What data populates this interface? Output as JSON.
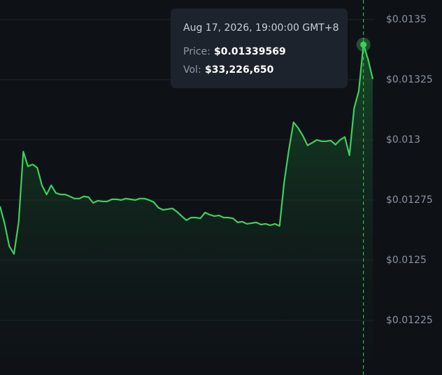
{
  "chart_data": {
    "type": "line",
    "color": "#3ecf5c",
    "values": [
      0.012724,
      0.012651,
      0.012558,
      0.012526,
      0.012657,
      0.012951,
      0.01289,
      0.012898,
      0.012884,
      0.012811,
      0.012773,
      0.012811,
      0.012779,
      0.012773,
      0.012773,
      0.012765,
      0.012756,
      0.012756,
      0.012765,
      0.012762,
      0.012738,
      0.012747,
      0.012744,
      0.012744,
      0.012753,
      0.012753,
      0.01275,
      0.012756,
      0.012753,
      0.01275,
      0.012756,
      0.012756,
      0.01275,
      0.012741,
      0.012718,
      0.012709,
      0.012712,
      0.012715,
      0.012701,
      0.012683,
      0.012666,
      0.012677,
      0.012677,
      0.012674,
      0.012698,
      0.012689,
      0.012683,
      0.012686,
      0.012677,
      0.012677,
      0.012674,
      0.012657,
      0.01266,
      0.012651,
      0.012654,
      0.012657,
      0.012648,
      0.012651,
      0.012645,
      0.012651,
      0.012642,
      0.012826,
      0.012959,
      0.013073,
      0.013049,
      0.013017,
      0.012977,
      0.012988,
      0.013,
      0.012994,
      0.012994,
      0.012997,
      0.01298,
      0.013,
      0.013012,
      0.012936,
      0.013131,
      0.013203,
      0.01339569,
      0.013334,
      0.013253
    ],
    "ylim": [
      0.012023,
      0.013581
    ],
    "yticks": [
      {
        "value": 0.0135,
        "label": "$0.0135"
      },
      {
        "value": 0.01325,
        "label": "$0.01325"
      },
      {
        "value": 0.013,
        "label": "$0.013"
      },
      {
        "value": 0.01275,
        "label": "$0.01275"
      },
      {
        "value": 0.0125,
        "label": "$0.0125"
      },
      {
        "value": 0.01225,
        "label": "$0.01225"
      }
    ],
    "grid": true,
    "tooltip": {
      "date": "Aug 17, 2026, 19:00:00 GMT+8",
      "price_label": "Price:",
      "price": "$0.01339569",
      "vol_label": "Vol:",
      "vol": "$33,226,650"
    }
  }
}
